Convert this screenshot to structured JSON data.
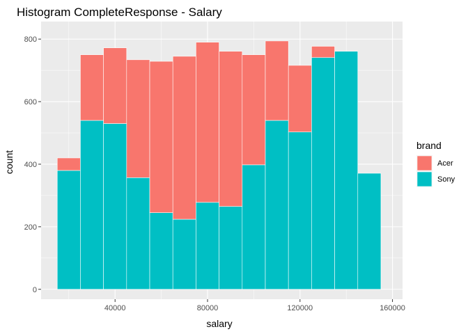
{
  "chart_data": {
    "type": "bar",
    "subtype": "stacked-histogram",
    "title": "Histogram CompleteResponse - Salary",
    "xlabel": "salary",
    "ylabel": "count",
    "xlim": [
      15000,
      155000
    ],
    "ylim": [
      0,
      800
    ],
    "x_ticks": [
      40000,
      80000,
      120000,
      160000
    ],
    "x_tick_labels": [
      "40000",
      "80000",
      "120000",
      "160000"
    ],
    "y_ticks": [
      0,
      200,
      400,
      600,
      800
    ],
    "y_tick_labels": [
      "0",
      "200",
      "400",
      "600",
      "800"
    ],
    "grid": true,
    "legend_title": "brand",
    "legend_position": "right",
    "bin_width": 10000,
    "bin_starts": [
      15000,
      25000,
      35000,
      45000,
      55000,
      65000,
      75000,
      85000,
      95000,
      105000,
      115000,
      125000,
      135000,
      145000
    ],
    "series": [
      {
        "name": "Acer",
        "color": "#F8766D",
        "values": [
          40,
          210,
          242,
          377,
          484,
          521,
          512,
          496,
          352,
          254,
          213,
          36,
          0,
          0
        ]
      },
      {
        "name": "Sony",
        "color": "#00BFC4",
        "values": [
          380,
          540,
          530,
          357,
          245,
          224,
          278,
          265,
          398,
          540,
          503,
          741,
          761,
          371
        ]
      }
    ]
  }
}
